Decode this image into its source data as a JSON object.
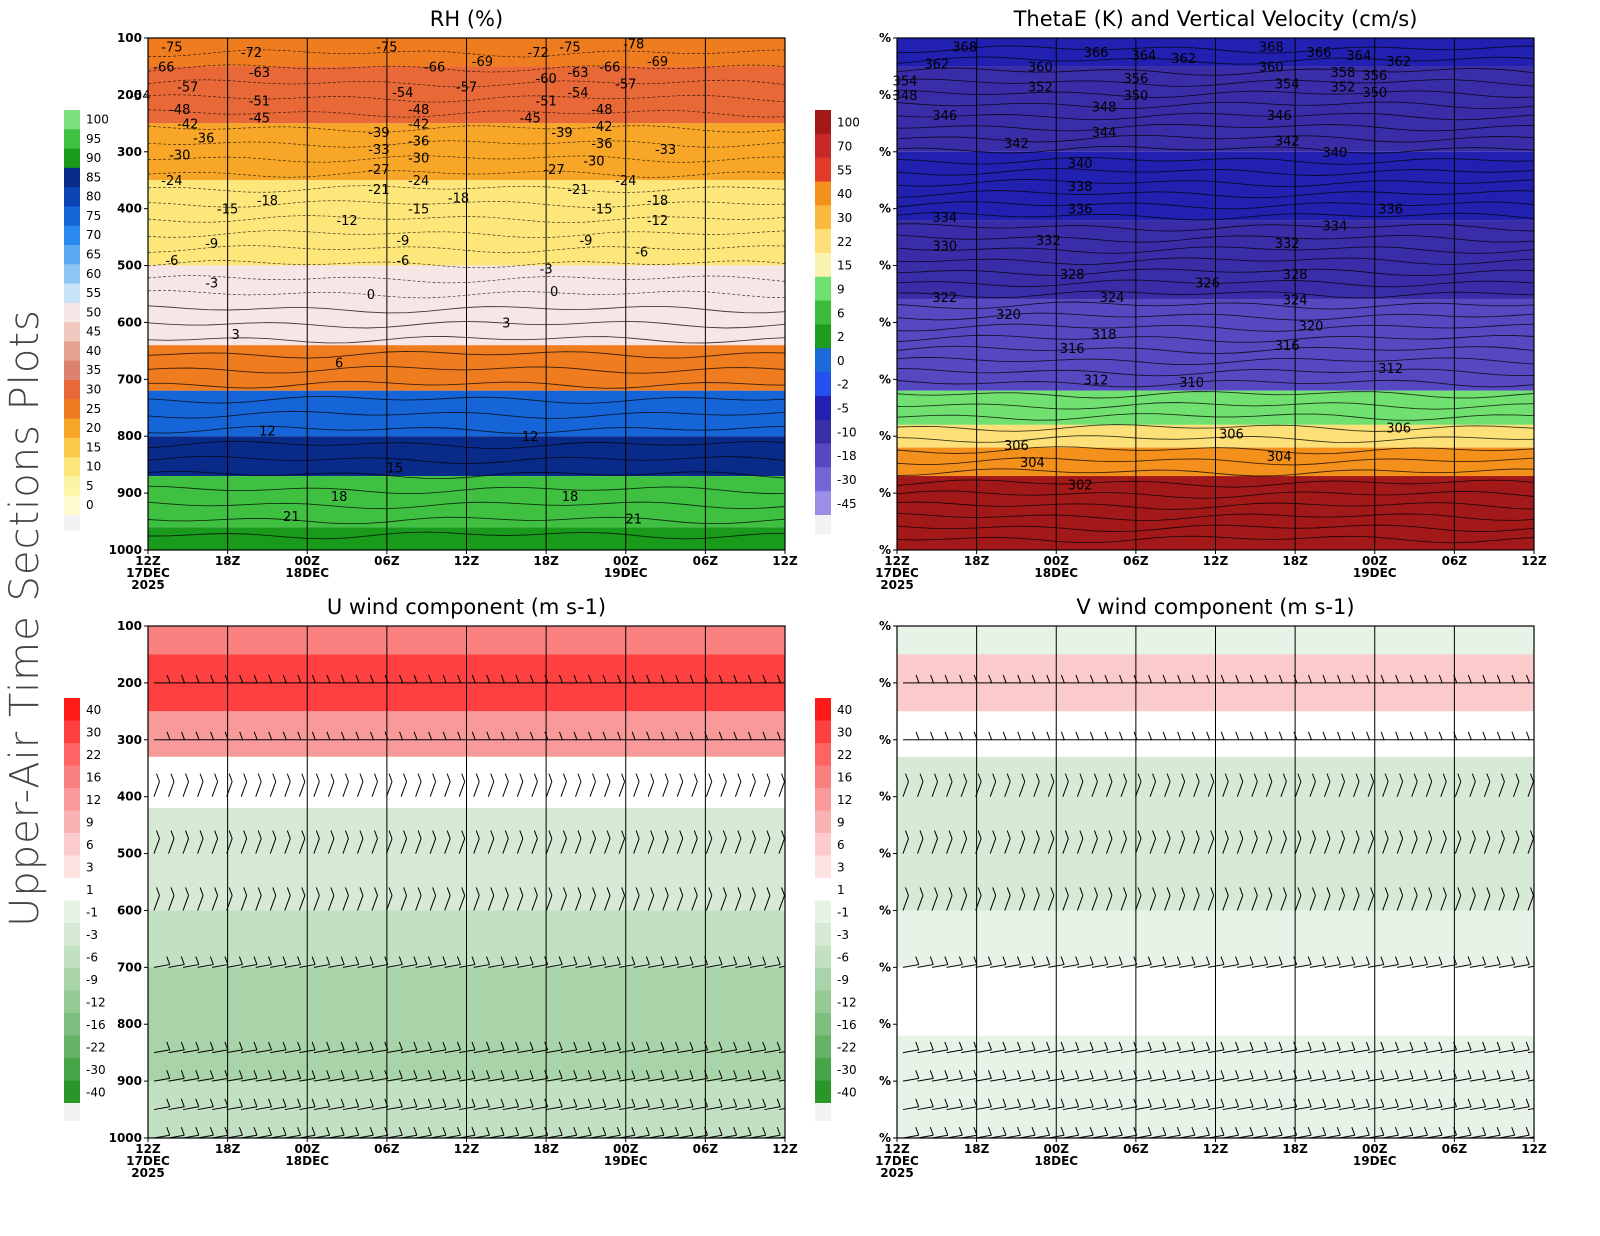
{
  "figure": {
    "side_title": "Upper-Air Time Sections Plots"
  },
  "time_ticks": {
    "hours": [
      "12Z",
      "18Z",
      "00Z",
      "06Z",
      "12Z",
      "18Z",
      "00Z",
      "06Z",
      "12Z"
    ],
    "date_labels": [
      {
        "index": 0,
        "day": "17DEC",
        "year": "2025"
      },
      {
        "index": 2,
        "day": "18DEC",
        "year": ""
      },
      {
        "index": 6,
        "day": "19DEC",
        "year": ""
      }
    ]
  },
  "chart_data": [
    {
      "id": "rh",
      "type": "heatmap",
      "title": "RH (%)",
      "x_axis": "time",
      "y_ticks": [
        "100",
        "200",
        "300",
        "400",
        "500",
        "600",
        "700",
        "800",
        "900",
        "1000"
      ],
      "y_range_hpa": [
        100,
        1000
      ],
      "colorbar": {
        "labels": [
          "100",
          "95",
          "90",
          "85",
          "80",
          "75",
          "70",
          "65",
          "60",
          "55",
          "50",
          "45",
          "40",
          "35",
          "30",
          "25",
          "20",
          "15",
          "10",
          "5",
          "0"
        ],
        "colors": [
          "#7be07b",
          "#40c040",
          "#1a9a1a",
          "#0a2a8a",
          "#0b45b5",
          "#1565d8",
          "#2a88ee",
          "#5aa8f2",
          "#8ec6f5",
          "#c8e2fa",
          "#f7e6e6",
          "#f1c8c0",
          "#e6a090",
          "#de8270",
          "#e86838",
          "#f07c20",
          "#f8a628",
          "#fcc84a",
          "#fde67a",
          "#fdf4a6",
          "#fefbd0"
        ]
      },
      "shading_bands": [
        {
          "from_hpa": 100,
          "to_hpa": 150,
          "value": 25
        },
        {
          "from_hpa": 150,
          "to_hpa": 250,
          "value": 30
        },
        {
          "from_hpa": 250,
          "to_hpa": 350,
          "value": 20
        },
        {
          "from_hpa": 350,
          "to_hpa": 500,
          "value": 10
        },
        {
          "from_hpa": 500,
          "to_hpa": 640,
          "value": 50
        },
        {
          "from_hpa": 640,
          "to_hpa": 720,
          "value": 25
        },
        {
          "from_hpa": 720,
          "to_hpa": 800,
          "value": 75
        },
        {
          "from_hpa": 800,
          "to_hpa": 870,
          "value": 85
        },
        {
          "from_hpa": 870,
          "to_hpa": 960,
          "value": 95
        },
        {
          "from_hpa": 960,
          "to_hpa": 1000,
          "value": 90
        }
      ],
      "contour_labels": [
        {
          "t": 0.3,
          "p": 115,
          "text": "-75"
        },
        {
          "t": 1.3,
          "p": 125,
          "text": "-72"
        },
        {
          "t": 3.0,
          "p": 115,
          "text": "-75"
        },
        {
          "t": 5.3,
          "p": 115,
          "text": "-75"
        },
        {
          "t": 6.1,
          "p": 110,
          "text": "-78"
        },
        {
          "t": 3.6,
          "p": 150,
          "text": "-66"
        },
        {
          "t": 4.2,
          "p": 140,
          "text": "-69"
        },
        {
          "t": 4.9,
          "p": 125,
          "text": "-72"
        },
        {
          "t": 5.8,
          "p": 150,
          "text": "-66"
        },
        {
          "t": 6.4,
          "p": 140,
          "text": "-69"
        },
        {
          "t": 0.2,
          "p": 150,
          "text": "-66"
        },
        {
          "t": 1.4,
          "p": 160,
          "text": "-63"
        },
        {
          "t": 5.4,
          "p": 160,
          "text": "-63"
        },
        {
          "t": 0.5,
          "p": 185,
          "text": "-57"
        },
        {
          "t": 4.0,
          "p": 185,
          "text": "-57"
        },
        {
          "t": 5.0,
          "p": 170,
          "text": "-60"
        },
        {
          "t": 6.0,
          "p": 180,
          "text": "-57"
        },
        {
          "t": -0.1,
          "p": 200,
          "text": "-54"
        },
        {
          "t": 3.2,
          "p": 195,
          "text": "-54"
        },
        {
          "t": 5.4,
          "p": 195,
          "text": "-54"
        },
        {
          "t": 1.4,
          "p": 210,
          "text": "-51"
        },
        {
          "t": 5.0,
          "p": 210,
          "text": "-51"
        },
        {
          "t": 0.4,
          "p": 225,
          "text": "-48"
        },
        {
          "t": 3.4,
          "p": 225,
          "text": "-48"
        },
        {
          "t": 5.7,
          "p": 225,
          "text": "-48"
        },
        {
          "t": 1.4,
          "p": 240,
          "text": "-45"
        },
        {
          "t": 4.8,
          "p": 240,
          "text": "-45"
        },
        {
          "t": 0.5,
          "p": 250,
          "text": "-42"
        },
        {
          "t": 3.4,
          "p": 250,
          "text": "-42"
        },
        {
          "t": 5.7,
          "p": 255,
          "text": "-42"
        },
        {
          "t": 2.9,
          "p": 265,
          "text": "-39"
        },
        {
          "t": 5.2,
          "p": 265,
          "text": "-39"
        },
        {
          "t": 0.7,
          "p": 275,
          "text": "-36"
        },
        {
          "t": 3.4,
          "p": 280,
          "text": "-36"
        },
        {
          "t": 5.7,
          "p": 285,
          "text": "-36"
        },
        {
          "t": 2.9,
          "p": 295,
          "text": "-33"
        },
        {
          "t": 6.5,
          "p": 295,
          "text": "-33"
        },
        {
          "t": 0.4,
          "p": 305,
          "text": "-30"
        },
        {
          "t": 3.4,
          "p": 310,
          "text": "-30"
        },
        {
          "t": 5.6,
          "p": 315,
          "text": "-30"
        },
        {
          "t": 2.9,
          "p": 330,
          "text": "-27"
        },
        {
          "t": 5.1,
          "p": 330,
          "text": "-27"
        },
        {
          "t": 0.3,
          "p": 350,
          "text": "-24"
        },
        {
          "t": 3.4,
          "p": 350,
          "text": "-24"
        },
        {
          "t": 6.0,
          "p": 350,
          "text": "-24"
        },
        {
          "t": 2.9,
          "p": 365,
          "text": "-21"
        },
        {
          "t": 5.4,
          "p": 365,
          "text": "-21"
        },
        {
          "t": 1.5,
          "p": 385,
          "text": "-18"
        },
        {
          "t": 3.9,
          "p": 380,
          "text": "-18"
        },
        {
          "t": 6.4,
          "p": 385,
          "text": "-18"
        },
        {
          "t": 1.0,
          "p": 400,
          "text": "-15"
        },
        {
          "t": 3.4,
          "p": 400,
          "text": "-15"
        },
        {
          "t": 5.7,
          "p": 400,
          "text": "-15"
        },
        {
          "t": 2.5,
          "p": 420,
          "text": "-12"
        },
        {
          "t": 6.4,
          "p": 420,
          "text": "-12"
        },
        {
          "t": 0.8,
          "p": 460,
          "text": "-9"
        },
        {
          "t": 3.2,
          "p": 455,
          "text": "-9"
        },
        {
          "t": 5.5,
          "p": 455,
          "text": "-9"
        },
        {
          "t": 0.3,
          "p": 490,
          "text": "-6"
        },
        {
          "t": 3.2,
          "p": 490,
          "text": "-6"
        },
        {
          "t": 6.2,
          "p": 475,
          "text": "-6"
        },
        {
          "t": 0.8,
          "p": 530,
          "text": "-3"
        },
        {
          "t": 5.0,
          "p": 505,
          "text": "-3"
        },
        {
          "t": 2.8,
          "p": 550,
          "text": "0"
        },
        {
          "t": 5.1,
          "p": 545,
          "text": "0"
        },
        {
          "t": 1.1,
          "p": 620,
          "text": "3"
        },
        {
          "t": 4.5,
          "p": 600,
          "text": "3"
        },
        {
          "t": 2.4,
          "p": 670,
          "text": "6"
        },
        {
          "t": 1.5,
          "p": 790,
          "text": "12"
        },
        {
          "t": 4.8,
          "p": 800,
          "text": "12"
        },
        {
          "t": 3.1,
          "p": 855,
          "text": "15"
        },
        {
          "t": 2.4,
          "p": 905,
          "text": "18"
        },
        {
          "t": 5.3,
          "p": 905,
          "text": "18"
        },
        {
          "t": 1.8,
          "p": 940,
          "text": "21"
        },
        {
          "t": 6.1,
          "p": 945,
          "text": "21"
        }
      ]
    },
    {
      "id": "thetae",
      "type": "heatmap",
      "title": "ThetaE (K) and Vertical Velocity (cm/s)",
      "x_axis": "time",
      "y_ticks": [
        "%",
        "%",
        "%",
        "%",
        "%",
        "%",
        "%",
        "%",
        "%",
        "%"
      ],
      "colorbar": {
        "labels": [
          "100",
          "70",
          "55",
          "40",
          "30",
          "22",
          "15",
          "9",
          "6",
          "2",
          "0",
          "-2",
          "-5",
          "-10",
          "-18",
          "-30",
          "-45"
        ],
        "colors": [
          "#a31818",
          "#c62828",
          "#e03a2a",
          "#f4901c",
          "#fbb840",
          "#fde078",
          "#fbf4b0",
          "#70e070",
          "#3cbc3c",
          "#1e9e1e",
          "#1a6ad8",
          "#2450f0",
          "#2220b0",
          "#3a2ea8",
          "#5548c0",
          "#7566d6",
          "#9a8ee8"
        ]
      },
      "shading_bands": [
        {
          "from_hpa": 100,
          "to_hpa": 150,
          "value": -5
        },
        {
          "from_hpa": 150,
          "to_hpa": 300,
          "value": -10
        },
        {
          "from_hpa": 300,
          "to_hpa": 420,
          "value": -5
        },
        {
          "from_hpa": 420,
          "to_hpa": 560,
          "value": -10
        },
        {
          "from_hpa": 560,
          "to_hpa": 720,
          "value": -18
        },
        {
          "from_hpa": 720,
          "to_hpa": 780,
          "value": 9
        },
        {
          "from_hpa": 780,
          "to_hpa": 820,
          "value": 22
        },
        {
          "from_hpa": 820,
          "to_hpa": 870,
          "value": 40
        },
        {
          "from_hpa": 870,
          "to_hpa": 1000,
          "value": 100
        }
      ],
      "contour_labels": [
        {
          "t": 0.85,
          "p": 115,
          "text": "368"
        },
        {
          "t": 2.5,
          "p": 125,
          "text": "366"
        },
        {
          "t": 3.1,
          "p": 130,
          "text": "364"
        },
        {
          "t": 3.6,
          "p": 135,
          "text": "362"
        },
        {
          "t": 4.7,
          "p": 115,
          "text": "368"
        },
        {
          "t": 5.3,
          "p": 125,
          "text": "366"
        },
        {
          "t": 5.8,
          "p": 130,
          "text": "364"
        },
        {
          "t": 6.3,
          "p": 140,
          "text": "362"
        },
        {
          "t": 0.5,
          "p": 145,
          "text": "362"
        },
        {
          "t": 1.8,
          "p": 150,
          "text": "360"
        },
        {
          "t": 4.7,
          "p": 150,
          "text": "360"
        },
        {
          "t": 5.6,
          "p": 160,
          "text": "358"
        },
        {
          "t": 6.0,
          "p": 165,
          "text": "356"
        },
        {
          "t": 0.1,
          "p": 175,
          "text": "354"
        },
        {
          "t": 3.0,
          "p": 170,
          "text": "356"
        },
        {
          "t": 4.9,
          "p": 180,
          "text": "354"
        },
        {
          "t": 1.8,
          "p": 185,
          "text": "352"
        },
        {
          "t": 5.6,
          "p": 185,
          "text": "352"
        },
        {
          "t": 6.0,
          "p": 195,
          "text": "350"
        },
        {
          "t": 0.1,
          "p": 200,
          "text": "348"
        },
        {
          "t": 3.0,
          "p": 200,
          "text": "350"
        },
        {
          "t": 2.6,
          "p": 220,
          "text": "348"
        },
        {
          "t": 0.6,
          "p": 235,
          "text": "346"
        },
        {
          "t": 4.8,
          "p": 235,
          "text": "346"
        },
        {
          "t": 2.6,
          "p": 265,
          "text": "344"
        },
        {
          "t": 1.5,
          "p": 285,
          "text": "342"
        },
        {
          "t": 4.9,
          "p": 280,
          "text": "342"
        },
        {
          "t": 5.5,
          "p": 300,
          "text": "340"
        },
        {
          "t": 2.3,
          "p": 320,
          "text": "340"
        },
        {
          "t": 2.3,
          "p": 360,
          "text": "338"
        },
        {
          "t": 2.3,
          "p": 400,
          "text": "336"
        },
        {
          "t": 6.2,
          "p": 400,
          "text": "336"
        },
        {
          "t": 0.6,
          "p": 415,
          "text": "334"
        },
        {
          "t": 5.5,
          "p": 430,
          "text": "334"
        },
        {
          "t": 1.9,
          "p": 455,
          "text": "332"
        },
        {
          "t": 4.9,
          "p": 460,
          "text": "332"
        },
        {
          "t": 0.6,
          "p": 465,
          "text": "330"
        },
        {
          "t": 2.2,
          "p": 515,
          "text": "328"
        },
        {
          "t": 5.0,
          "p": 515,
          "text": "328"
        },
        {
          "t": 3.9,
          "p": 530,
          "text": "326"
        },
        {
          "t": 2.7,
          "p": 555,
          "text": "324"
        },
        {
          "t": 5.0,
          "p": 560,
          "text": "324"
        },
        {
          "t": 0.6,
          "p": 555,
          "text": "322"
        },
        {
          "t": 1.4,
          "p": 585,
          "text": "320"
        },
        {
          "t": 5.2,
          "p": 605,
          "text": "320"
        },
        {
          "t": 2.6,
          "p": 620,
          "text": "318"
        },
        {
          "t": 2.2,
          "p": 645,
          "text": "316"
        },
        {
          "t": 4.9,
          "p": 640,
          "text": "316"
        },
        {
          "t": 6.2,
          "p": 680,
          "text": "312"
        },
        {
          "t": 2.5,
          "p": 700,
          "text": "312"
        },
        {
          "t": 3.7,
          "p": 705,
          "text": "310"
        },
        {
          "t": 1.5,
          "p": 815,
          "text": "306"
        },
        {
          "t": 4.2,
          "p": 795,
          "text": "306"
        },
        {
          "t": 6.3,
          "p": 785,
          "text": "306"
        },
        {
          "t": 1.7,
          "p": 845,
          "text": "304"
        },
        {
          "t": 4.8,
          "p": 835,
          "text": "304"
        },
        {
          "t": 2.3,
          "p": 885,
          "text": "302"
        }
      ]
    },
    {
      "id": "uwind",
      "type": "heatmap",
      "title": "U wind component (m s-1)",
      "x_axis": "time",
      "y_ticks": [
        "100",
        "200",
        "300",
        "400",
        "500",
        "600",
        "700",
        "800",
        "900",
        "1000"
      ],
      "colorbar": {
        "labels": [
          "40",
          "30",
          "22",
          "16",
          "12",
          "9",
          "6",
          "3",
          "1",
          "-1",
          "-3",
          "-6",
          "-9",
          "-12",
          "-16",
          "-22",
          "-30",
          "-40"
        ],
        "colors": [
          "#ff1a1a",
          "#ff4040",
          "#ff6464",
          "#fa8080",
          "#f89a9a",
          "#f9b2b2",
          "#fbcaca",
          "#fde2e2",
          "#ffffff",
          "#e8f3e8",
          "#d6ead6",
          "#c2e0c2",
          "#a9d4a9",
          "#95ca95",
          "#7ebe7e",
          "#66b266",
          "#48a448",
          "#2a962a"
        ]
      },
      "shading_bands": [
        {
          "from_hpa": 100,
          "to_hpa": 150,
          "value": 16
        },
        {
          "from_hpa": 150,
          "to_hpa": 250,
          "value": 30
        },
        {
          "from_hpa": 250,
          "to_hpa": 330,
          "value": 12
        },
        {
          "from_hpa": 330,
          "to_hpa": 420,
          "value": 1
        },
        {
          "from_hpa": 420,
          "to_hpa": 600,
          "value": -3
        },
        {
          "from_hpa": 600,
          "to_hpa": 700,
          "value": -6
        },
        {
          "from_hpa": 700,
          "to_hpa": 900,
          "value": -9
        },
        {
          "from_hpa": 900,
          "to_hpa": 1000,
          "value": -6
        }
      ],
      "barb_levels_hpa": [
        200,
        300,
        400,
        500,
        600,
        700,
        850,
        900,
        950,
        1000
      ]
    },
    {
      "id": "vwind",
      "type": "heatmap",
      "title": "V wind component (m s-1)",
      "x_axis": "time",
      "y_ticks": [
        "%",
        "%",
        "%",
        "%",
        "%",
        "%",
        "%",
        "%",
        "%",
        "%"
      ],
      "colorbar": {
        "labels": [
          "40",
          "30",
          "22",
          "16",
          "12",
          "9",
          "6",
          "3",
          "1",
          "-1",
          "-3",
          "-6",
          "-9",
          "-12",
          "-16",
          "-22",
          "-30",
          "-40"
        ],
        "colors": [
          "#ff1a1a",
          "#ff4040",
          "#ff6464",
          "#fa8080",
          "#f89a9a",
          "#f9b2b2",
          "#fbcaca",
          "#fde2e2",
          "#ffffff",
          "#e8f3e8",
          "#d6ead6",
          "#c2e0c2",
          "#a9d4a9",
          "#95ca95",
          "#7ebe7e",
          "#66b266",
          "#48a448",
          "#2a962a"
        ]
      },
      "shading_bands": [
        {
          "from_hpa": 100,
          "to_hpa": 150,
          "value": -1
        },
        {
          "from_hpa": 150,
          "to_hpa": 250,
          "value": 6
        },
        {
          "from_hpa": 250,
          "to_hpa": 330,
          "value": 1
        },
        {
          "from_hpa": 330,
          "to_hpa": 600,
          "value": -3
        },
        {
          "from_hpa": 600,
          "to_hpa": 700,
          "value": -1
        },
        {
          "from_hpa": 700,
          "to_hpa": 820,
          "value": 1
        },
        {
          "from_hpa": 820,
          "to_hpa": 1000,
          "value": -1
        }
      ],
      "barb_levels_hpa": [
        200,
        300,
        400,
        500,
        600,
        700,
        850,
        900,
        950,
        1000
      ]
    }
  ]
}
